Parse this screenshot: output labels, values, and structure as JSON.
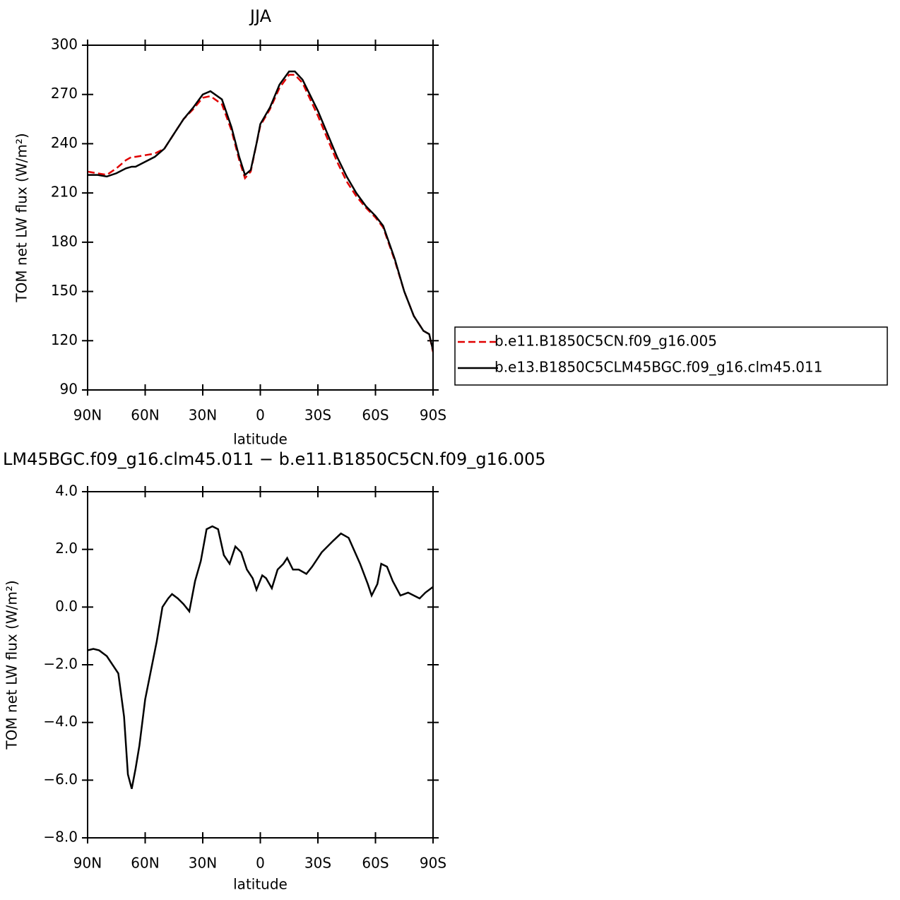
{
  "chart_data": [
    {
      "type": "line",
      "title": "JJA",
      "xlabel": "latitude",
      "ylabel": "TOM net LW flux (W/m²)",
      "x": [
        90,
        85,
        80,
        75,
        70,
        67,
        65,
        60,
        55,
        50,
        45,
        40,
        35,
        30,
        26,
        20,
        15,
        11,
        8,
        5,
        2,
        0,
        -5,
        -10,
        -15,
        -18,
        -22,
        -30,
        -35,
        -40,
        -45,
        -50,
        -55,
        -60,
        -64,
        -70,
        -75,
        -80,
        -85,
        -88,
        -90
      ],
      "series": [
        {
          "name": "b.e11.B1850C5CN.f09_g16.005",
          "color": "#e00000",
          "dash": true,
          "values": [
            223,
            222,
            221,
            225,
            230,
            232,
            232,
            233,
            234,
            237,
            246,
            255,
            261,
            268,
            269,
            264,
            248,
            230,
            219,
            223,
            240,
            251,
            261,
            274,
            282,
            282,
            277,
            257,
            243,
            229,
            217,
            208,
            201,
            195,
            189,
            169,
            150,
            135,
            126,
            124,
            113
          ]
        },
        {
          "name": "b.e13.B1850C5CLM45BGC.f09_g16.clm45.011",
          "color": "#000000",
          "dash": false,
          "values": [
            221,
            221,
            220,
            222,
            225,
            226,
            226,
            229,
            232,
            237,
            246,
            255,
            262,
            270,
            272,
            267,
            250,
            232,
            221,
            224,
            240,
            252,
            262,
            276,
            284,
            284,
            279,
            260,
            246,
            232,
            220,
            210,
            202,
            196,
            190,
            170,
            150,
            135,
            126,
            124,
            114
          ]
        }
      ],
      "xlim": [
        90,
        -90
      ],
      "xticks": [
        {
          "value": 90,
          "label": "90N"
        },
        {
          "value": 60,
          "label": "60N"
        },
        {
          "value": 30,
          "label": "30N"
        },
        0,
        {
          "value": -30,
          "label": "30S"
        },
        {
          "value": -60,
          "label": "60S"
        },
        {
          "value": -90,
          "label": "90S"
        }
      ],
      "ylim": [
        90,
        300
      ],
      "yticks": [
        90,
        120,
        150,
        180,
        210,
        240,
        270,
        300
      ]
    },
    {
      "type": "line",
      "title": "LM45BGC.f09_g16.clm45.011 − b.e11.B1850C5CN.f09_g16.005",
      "xlabel": "latitude",
      "ylabel": "TOM net LW flux (W/m²)",
      "x": [
        90,
        87,
        84,
        80,
        76,
        74,
        71,
        69,
        67,
        65,
        63,
        60,
        57,
        54,
        51,
        48,
        46,
        43,
        40,
        37,
        34,
        31,
        28,
        25,
        22,
        19,
        16,
        13,
        10,
        7,
        4,
        2,
        -1,
        -3,
        -6,
        -9,
        -12,
        -14,
        -17,
        -20,
        -24,
        -27,
        -32,
        -38,
        -42,
        -46,
        -52,
        -56,
        -58,
        -61,
        -63,
        -66,
        -69,
        -73,
        -77,
        -80,
        -83,
        -86,
        -90
      ],
      "series": [
        {
          "color": "#000000",
          "dash": false,
          "values": [
            -1.5,
            -1.45,
            -1.5,
            -1.7,
            -2.1,
            -2.3,
            -3.8,
            -5.8,
            -6.3,
            -5.6,
            -4.8,
            -3.2,
            -2.2,
            -1.2,
            0,
            0.3,
            0.45,
            0.3,
            0.1,
            -0.15,
            0.9,
            1.6,
            2.7,
            2.8,
            2.7,
            1.8,
            1.5,
            2.1,
            1.9,
            1.3,
            1.0,
            0.6,
            1.1,
            1.0,
            0.65,
            1.3,
            1.5,
            1.7,
            1.3,
            1.3,
            1.15,
            1.4,
            1.9,
            2.3,
            2.55,
            2.4,
            1.5,
            0.8,
            0.4,
            0.8,
            1.5,
            1.4,
            0.9,
            0.4,
            0.5,
            0.4,
            0.3,
            0.5,
            0.7
          ]
        }
      ],
      "xlim": [
        90,
        -90
      ],
      "xticks": [
        {
          "value": 90,
          "label": "90N"
        },
        {
          "value": 60,
          "label": "60N"
        },
        {
          "value": 30,
          "label": "30N"
        },
        0,
        {
          "value": -30,
          "label": "30S"
        },
        {
          "value": -60,
          "label": "60S"
        },
        {
          "value": -90,
          "label": "90S"
        }
      ],
      "ylim": [
        -8,
        4
      ],
      "yticks": [
        {
          "value": -8,
          "label": "−8.0"
        },
        {
          "value": -6,
          "label": "−6.0"
        },
        {
          "value": -4,
          "label": "−4.0"
        },
        {
          "value": -2,
          "label": "−2.0"
        },
        {
          "value": 0,
          "label": "0.0"
        },
        {
          "value": 2,
          "label": "2.0"
        },
        {
          "value": 4,
          "label": "4.0"
        }
      ]
    }
  ]
}
